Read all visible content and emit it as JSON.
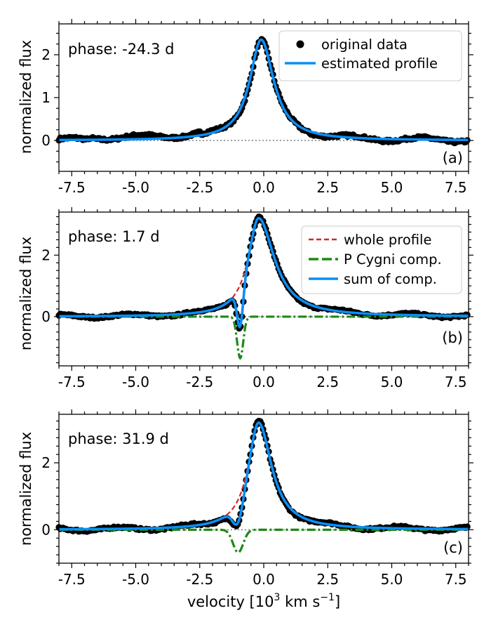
{
  "chart_data": {
    "type": "line",
    "x_label": "velocity [10",
    "x_label_exp1": "3",
    "x_label_mid": " km s",
    "x_label_exp2": "−1",
    "x_label_end": "]",
    "colors": {
      "data": "#000000",
      "estimated": "#0a8ef5",
      "whole": "#d62728",
      "pcygni": "#1a8a12",
      "baseline": "#808080"
    },
    "x_range": [
      -8.0,
      8.0
    ],
    "x_ticks": [
      -7.5,
      -5.0,
      -2.5,
      0.0,
      2.5,
      5.0,
      7.5
    ],
    "x_tick_labels": [
      "-7.5",
      "-5.0",
      "-2.5",
      "0.0",
      "2.5",
      "5.0",
      "7.5"
    ],
    "panels": [
      {
        "id": "a",
        "phase_label": "phase: -24.3 d",
        "tag": "(a)",
        "ylabel": "normalized flux",
        "ylim": [
          -0.72,
          2.72
        ],
        "y_ticks": [
          0,
          1,
          2
        ],
        "y_tick_labels": [
          "0",
          "1",
          "2"
        ],
        "legend": [
          "original data",
          "estimated profile"
        ],
        "profile": {
          "peak": 2.35,
          "center": -0.1,
          "gamma_left": 0.55,
          "gamma_right": 0.6,
          "pcyg_amp": 0,
          "pcyg_center": 0,
          "pcyg_sigma": 0.15
        }
      },
      {
        "id": "b",
        "phase_label": "phase: 1.7 d",
        "tag": "(b)",
        "ylabel": "normalized flux",
        "ylim": [
          -1.6,
          3.4
        ],
        "y_ticks": [
          0,
          2
        ],
        "y_tick_labels": [
          "0",
          "2"
        ],
        "legend": [
          "whole profile",
          "P Cygni comp.",
          "sum of comp."
        ],
        "profile": {
          "peak": 3.2,
          "center": -0.2,
          "gamma_left": 0.5,
          "gamma_right": 0.75,
          "pcyg_amp": 1.35,
          "pcyg_center": -0.92,
          "pcyg_sigma": 0.12
        }
      },
      {
        "id": "c",
        "phase_label": "phase: 31.9 d",
        "tag": "(c)",
        "ylabel": "normalized flux",
        "ylim": [
          -1.0,
          3.45
        ],
        "y_ticks": [
          0,
          2
        ],
        "y_tick_labels": [
          "0",
          "2"
        ],
        "legend": [],
        "profile": {
          "peak": 3.2,
          "center": -0.2,
          "gamma_left": 0.5,
          "gamma_right": 0.62,
          "pcyg_amp": 0.68,
          "pcyg_center": -1.0,
          "pcyg_sigma": 0.2
        }
      }
    ]
  }
}
